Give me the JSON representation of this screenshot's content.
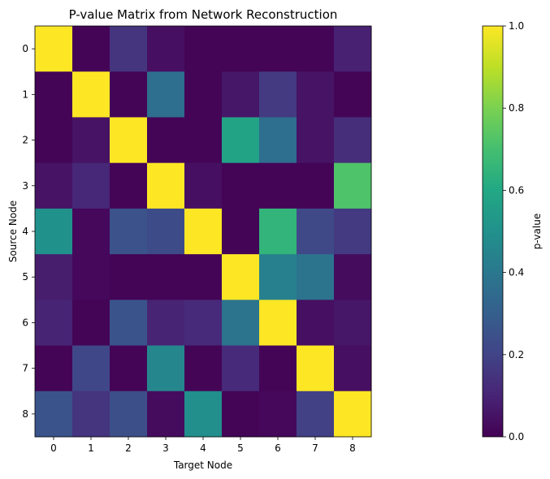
{
  "chart_data": {
    "type": "heatmap",
    "title": "P-value Matrix from Network Reconstruction",
    "xlabel": "Target Node",
    "ylabel": "Source Node",
    "x_categories": [
      "0",
      "1",
      "2",
      "3",
      "4",
      "5",
      "6",
      "7",
      "8"
    ],
    "y_categories": [
      "0",
      "1",
      "2",
      "3",
      "4",
      "5",
      "6",
      "7",
      "8"
    ],
    "values": [
      [
        1.0,
        0.01,
        0.15,
        0.04,
        0.01,
        0.01,
        0.01,
        0.01,
        0.09
      ],
      [
        0.01,
        1.0,
        0.01,
        0.36,
        0.01,
        0.06,
        0.17,
        0.05,
        0.01
      ],
      [
        0.01,
        0.05,
        1.0,
        0.01,
        0.01,
        0.58,
        0.36,
        0.05,
        0.13
      ],
      [
        0.05,
        0.11,
        0.01,
        1.0,
        0.04,
        0.01,
        0.01,
        0.01,
        0.72
      ],
      [
        0.5,
        0.02,
        0.25,
        0.23,
        1.0,
        0.01,
        0.65,
        0.22,
        0.17
      ],
      [
        0.08,
        0.02,
        0.01,
        0.01,
        0.01,
        1.0,
        0.43,
        0.38,
        0.03
      ],
      [
        0.1,
        0.01,
        0.26,
        0.1,
        0.12,
        0.38,
        1.0,
        0.04,
        0.06
      ],
      [
        0.01,
        0.21,
        0.01,
        0.46,
        0.01,
        0.12,
        0.01,
        1.0,
        0.04
      ],
      [
        0.26,
        0.15,
        0.24,
        0.03,
        0.49,
        0.01,
        0.02,
        0.19,
        1.0
      ]
    ],
    "colormap": "viridis",
    "vmin": 0,
    "vmax": 1,
    "colorbar": {
      "label": "p-value",
      "ticks": [
        "0.0",
        "0.2",
        "0.4",
        "0.6",
        "0.8",
        "1.0"
      ]
    },
    "grid": false,
    "legend": "none"
  }
}
